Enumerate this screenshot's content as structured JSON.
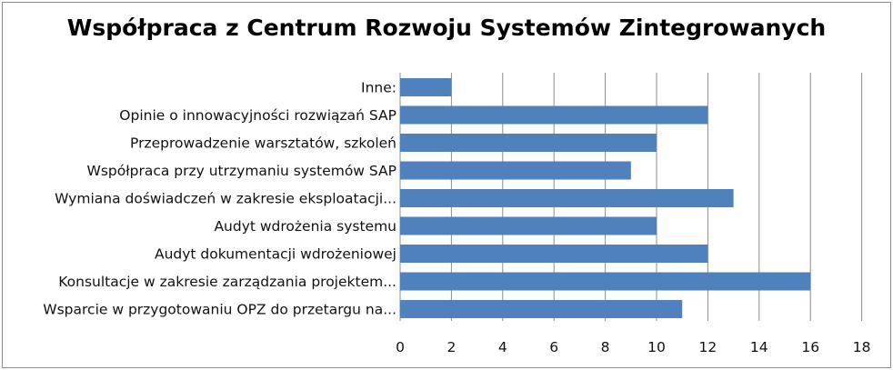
{
  "chart_data": {
    "type": "bar",
    "orientation": "horizontal",
    "title": "Współpraca z Centrum Rozwoju Systemów Zintegrowanych",
    "xlabel": "",
    "ylabel": "",
    "categories": [
      "Inne:",
      "Opinie o innowacyjności rozwiązań SAP",
      "Przeprowadzenie warsztatów, szkoleń",
      "Współpraca przy utrzymaniu systemów SAP",
      "Wymiana doświadczeń w zakresie eksploatacji...",
      "Audyt wdrożenia systemu",
      "Audyt dokumentacji wdrożeniowej",
      "Konsultacje w zakresie zarządzania projektem...",
      "Wsparcie w przygotowaniu OPZ do przetargu na..."
    ],
    "values": [
      2,
      12,
      10,
      9,
      13,
      10,
      12,
      16,
      11
    ],
    "xlim": [
      0,
      18
    ],
    "xticks": [
      "0",
      "2",
      "4",
      "6",
      "8",
      "10",
      "12",
      "14",
      "16",
      "18"
    ],
    "grid": "vertical",
    "legend": "none",
    "bar_color": "#4f81bd",
    "grid_color": "#8c8c8c"
  }
}
